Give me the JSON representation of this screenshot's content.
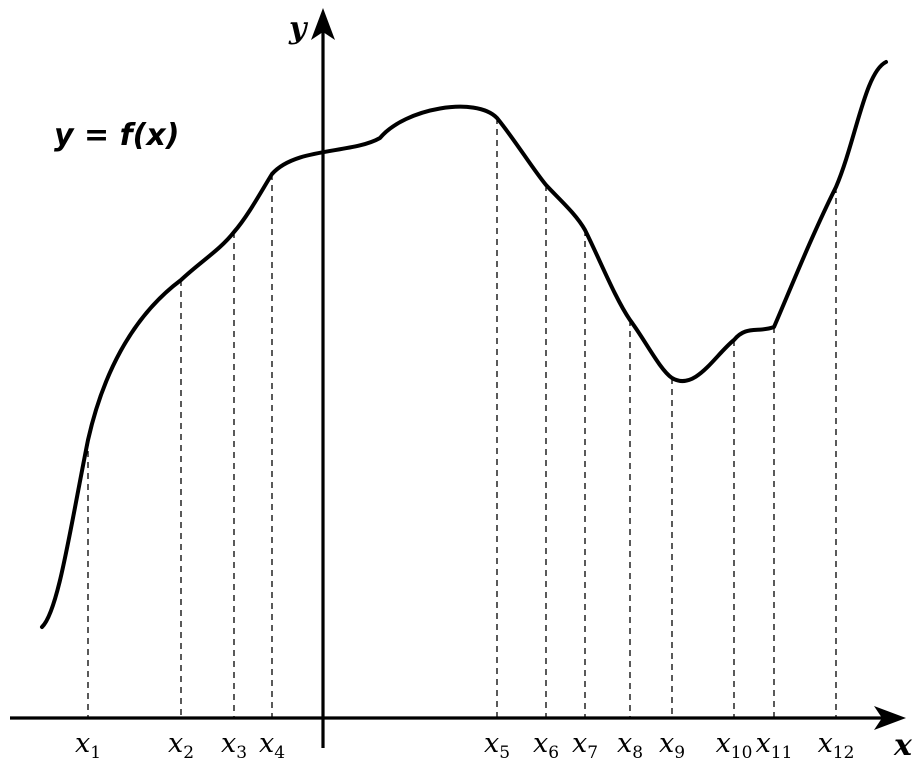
{
  "figure": {
    "y_axis_label": "y",
    "x_axis_label": "x",
    "function_label": "y = f(x)"
  },
  "ticks": [
    {
      "name": "x1",
      "var": "x",
      "sub": "1"
    },
    {
      "name": "x2",
      "var": "x",
      "sub": "2"
    },
    {
      "name": "x3",
      "var": "x",
      "sub": "3"
    },
    {
      "name": "x4",
      "var": "x",
      "sub": "4"
    },
    {
      "name": "x5",
      "var": "x",
      "sub": "5"
    },
    {
      "name": "x6",
      "var": "x",
      "sub": "6"
    },
    {
      "name": "x7",
      "var": "x",
      "sub": "7"
    },
    {
      "name": "x8",
      "var": "x",
      "sub": "8"
    },
    {
      "name": "x9",
      "var": "x",
      "sub": "9"
    },
    {
      "name": "x10",
      "var": "x",
      "sub": "10"
    },
    {
      "name": "x11",
      "var": "x",
      "sub": "11"
    },
    {
      "name": "x12",
      "var": "x",
      "sub": "12"
    }
  ]
}
